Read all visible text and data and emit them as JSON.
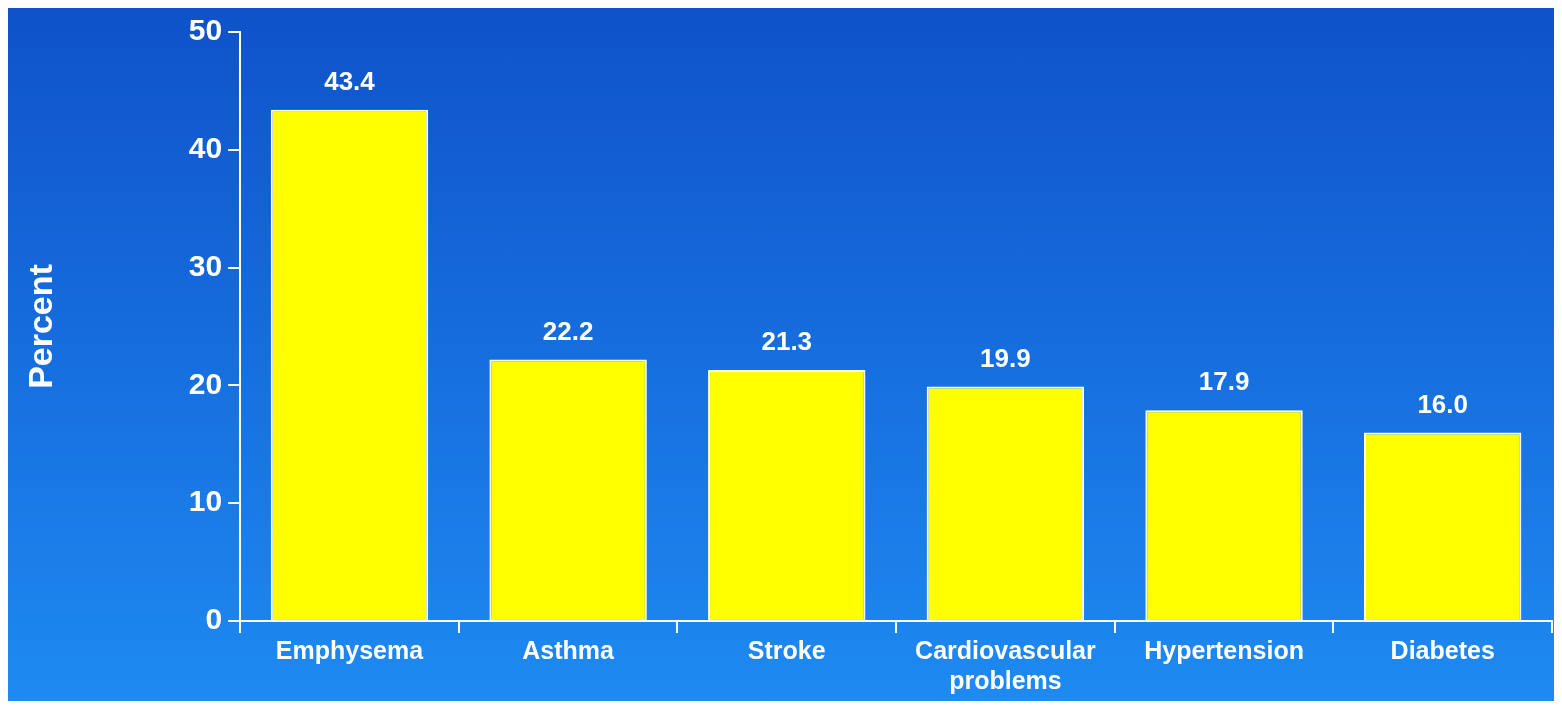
{
  "chart_data": {
    "type": "bar",
    "ylabel": "Percent",
    "categories": [
      "Emphysema",
      "Asthma",
      "Stroke",
      "Cardiovascular problems",
      "Hypertension",
      "Diabetes"
    ],
    "values": [
      43.4,
      22.2,
      21.3,
      19.9,
      17.9,
      16.0
    ],
    "value_labels": [
      "43.4",
      "22.2",
      "21.3",
      "19.9",
      "17.9",
      "16.0"
    ],
    "color": "#ffff00",
    "ylim": [
      0,
      50
    ],
    "yticks": [
      0,
      10,
      20,
      30,
      40,
      50
    ],
    "grid": false,
    "legend": false
  }
}
